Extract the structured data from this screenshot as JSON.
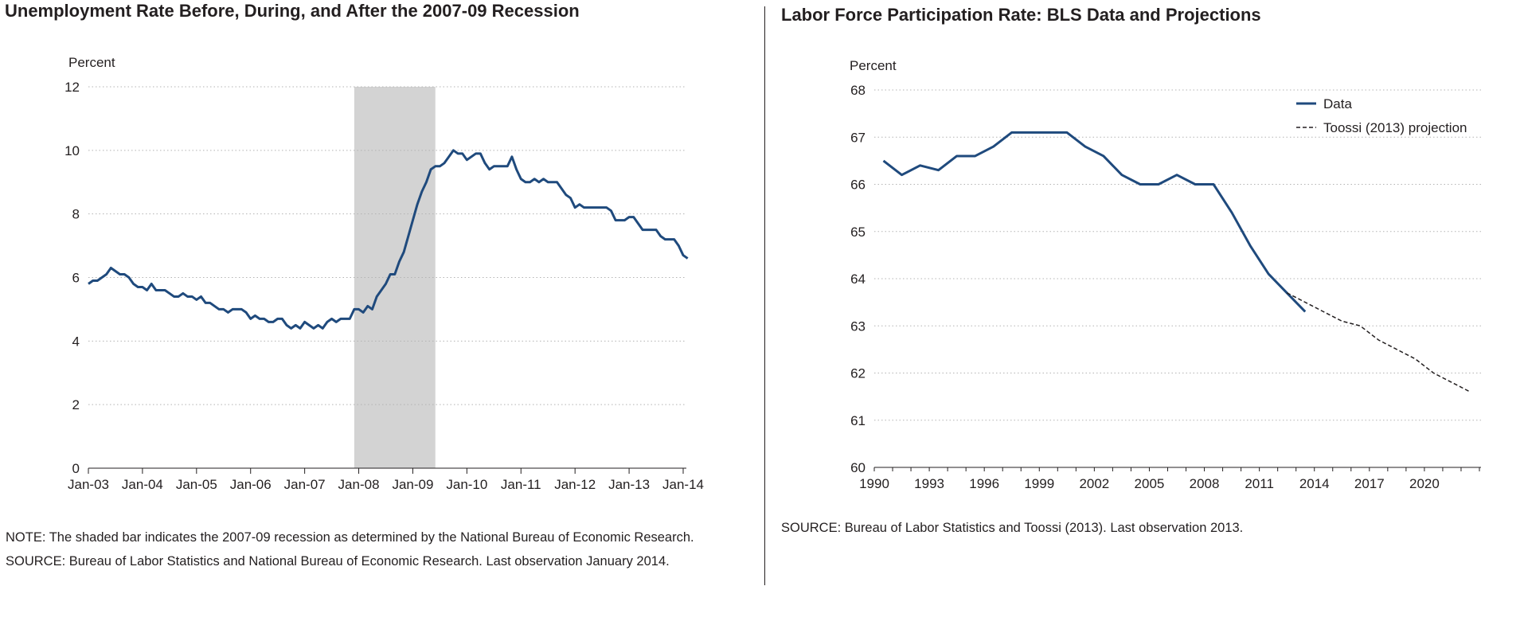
{
  "colors": {
    "data_line": "#1f4a7d",
    "recession_shade": "#d3d3d3",
    "grid": "#b3b3b3",
    "text": "#231f20"
  },
  "left": {
    "title": "Unemployment Rate Before, During, and After the 2007-09 Recession",
    "note": "NOTE: The shaded bar indicates the 2007-09 recession as determined by the National Bureau of Economic Research.",
    "source": "SOURCE: Bureau of Labor Statistics and National Bureau of Economic Research. Last observation January 2014."
  },
  "right": {
    "title": "Labor Force Participation Rate: BLS Data and Projections",
    "source": "SOURCE: Bureau of Labor Statistics and Toossi (2013). Last observation 2013."
  },
  "chart_data": [
    {
      "type": "line",
      "title": "Unemployment Rate Before, During, and After the 2007-09 Recession",
      "ylabel": "Percent",
      "xlabel": "",
      "ylim": [
        0,
        12
      ],
      "yticks": [
        "0",
        "2",
        "4",
        "6",
        "8",
        "10",
        "12"
      ],
      "xticks": [
        "Jan-03",
        "Jan-04",
        "Jan-05",
        "Jan-06",
        "Jan-07",
        "Jan-08",
        "Jan-09",
        "Jan-10",
        "Jan-11",
        "Jan-12",
        "Jan-13",
        "Jan-14"
      ],
      "xlim": [
        "2003-01",
        "2014-01"
      ],
      "grid": "horizontal dotted",
      "legend": "none",
      "recession_shading": {
        "start": "2007-12",
        "end": "2009-06"
      },
      "series": [
        {
          "start": "2003-01",
          "frequency": "monthly",
          "end": "2014-01",
          "values": [
            5.8,
            5.9,
            5.9,
            6.0,
            6.1,
            6.3,
            6.2,
            6.1,
            6.1,
            6.0,
            5.8,
            5.7,
            5.7,
            5.6,
            5.8,
            5.6,
            5.6,
            5.6,
            5.5,
            5.4,
            5.4,
            5.5,
            5.4,
            5.4,
            5.3,
            5.4,
            5.2,
            5.2,
            5.1,
            5.0,
            5.0,
            4.9,
            5.0,
            5.0,
            5.0,
            4.9,
            4.7,
            4.8,
            4.7,
            4.7,
            4.6,
            4.6,
            4.7,
            4.7,
            4.5,
            4.4,
            4.5,
            4.4,
            4.6,
            4.5,
            4.4,
            4.5,
            4.4,
            4.6,
            4.7,
            4.6,
            4.7,
            4.7,
            4.7,
            5.0,
            5.0,
            4.9,
            5.1,
            5.0,
            5.4,
            5.6,
            5.8,
            6.1,
            6.1,
            6.5,
            6.8,
            7.3,
            7.8,
            8.3,
            8.7,
            9.0,
            9.4,
            9.5,
            9.5,
            9.6,
            9.8,
            10.0,
            9.9,
            9.9,
            9.7,
            9.8,
            9.9,
            9.9,
            9.6,
            9.4,
            9.5,
            9.5,
            9.5,
            9.5,
            9.8,
            9.4,
            9.1,
            9.0,
            9.0,
            9.1,
            9.0,
            9.1,
            9.0,
            9.0,
            9.0,
            8.8,
            8.6,
            8.5,
            8.2,
            8.3,
            8.2,
            8.2,
            8.2,
            8.2,
            8.2,
            8.2,
            8.1,
            7.8,
            7.8,
            7.8,
            7.9,
            7.9,
            7.7,
            7.5,
            7.5,
            7.5,
            7.5,
            7.3,
            7.2,
            7.2,
            7.2,
            7.0,
            6.7,
            6.6
          ]
        }
      ]
    },
    {
      "type": "line",
      "title": "Labor Force Participation Rate: BLS Data and Projections",
      "ylabel": "Percent",
      "xlabel": "",
      "ylim": [
        60,
        68
      ],
      "xlim": [
        1990,
        2023
      ],
      "yticks": [
        "60",
        "61",
        "62",
        "63",
        "64",
        "65",
        "66",
        "67",
        "68"
      ],
      "xticks": [
        "1990",
        "1993",
        "1996",
        "1999",
        "2002",
        "2005",
        "2008",
        "2011",
        "2014",
        "2017",
        "2020"
      ],
      "grid": "horizontal dotted",
      "legend": "top-right",
      "series": [
        {
          "name": "Data",
          "style": "solid",
          "x": [
            1990.5,
            1991.5,
            1992.5,
            1993.5,
            1994.5,
            1995.5,
            1996.5,
            1997.5,
            1998.5,
            1999.5,
            2000.5,
            2001.5,
            2002.5,
            2003.5,
            2004.5,
            2005.5,
            2006.5,
            2007.5,
            2008.5,
            2009.5,
            2010.5,
            2011.5,
            2012.5,
            2013.5
          ],
          "y": [
            66.5,
            66.2,
            66.4,
            66.3,
            66.6,
            66.6,
            66.8,
            67.1,
            67.1,
            67.1,
            67.1,
            66.8,
            66.6,
            66.2,
            66.0,
            66.0,
            66.2,
            66.0,
            66.0,
            65.4,
            64.7,
            64.1,
            63.7,
            63.3
          ]
        },
        {
          "name": "Toossi (2013) projection",
          "style": "dashed",
          "x": [
            2012.5,
            2013.5,
            2014.5,
            2015.5,
            2016.5,
            2017.5,
            2018.5,
            2019.5,
            2020.5,
            2021.5,
            2022.5
          ],
          "y": [
            63.7,
            63.5,
            63.3,
            63.1,
            63.0,
            62.7,
            62.5,
            62.3,
            62.0,
            61.8,
            61.6
          ]
        }
      ]
    }
  ]
}
